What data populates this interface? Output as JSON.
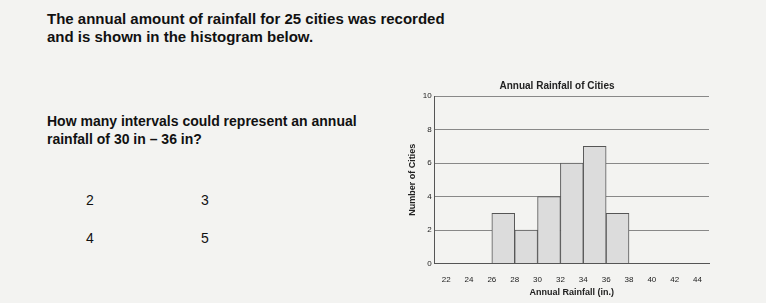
{
  "question": {
    "intro": "The annual amount of rainfall for 25 cities was recorded and is shown in the histogram below.",
    "prompt": "How many intervals could represent an annual rainfall of 30 in – 36 in?",
    "choices": [
      "2",
      "3",
      "4",
      "5"
    ]
  },
  "chart_data": {
    "type": "histogram",
    "title": "Annual Rainfall of Cities",
    "x_label": "Annual Rainfall (in.)",
    "y_label": "Number of Cities",
    "bins": [
      26,
      28,
      30,
      32,
      34,
      36,
      38
    ],
    "values": [
      3,
      2,
      4,
      6,
      7,
      3
    ],
    "color": "#dcdcdc",
    "xlim": [
      22,
      44
    ],
    "xticks": [
      22,
      24,
      26,
      28,
      30,
      32,
      34,
      36,
      38,
      40,
      42,
      44
    ],
    "ylim": [
      0,
      10
    ],
    "yticks": [
      0,
      2,
      4,
      6,
      8,
      10
    ],
    "grid": true
  }
}
